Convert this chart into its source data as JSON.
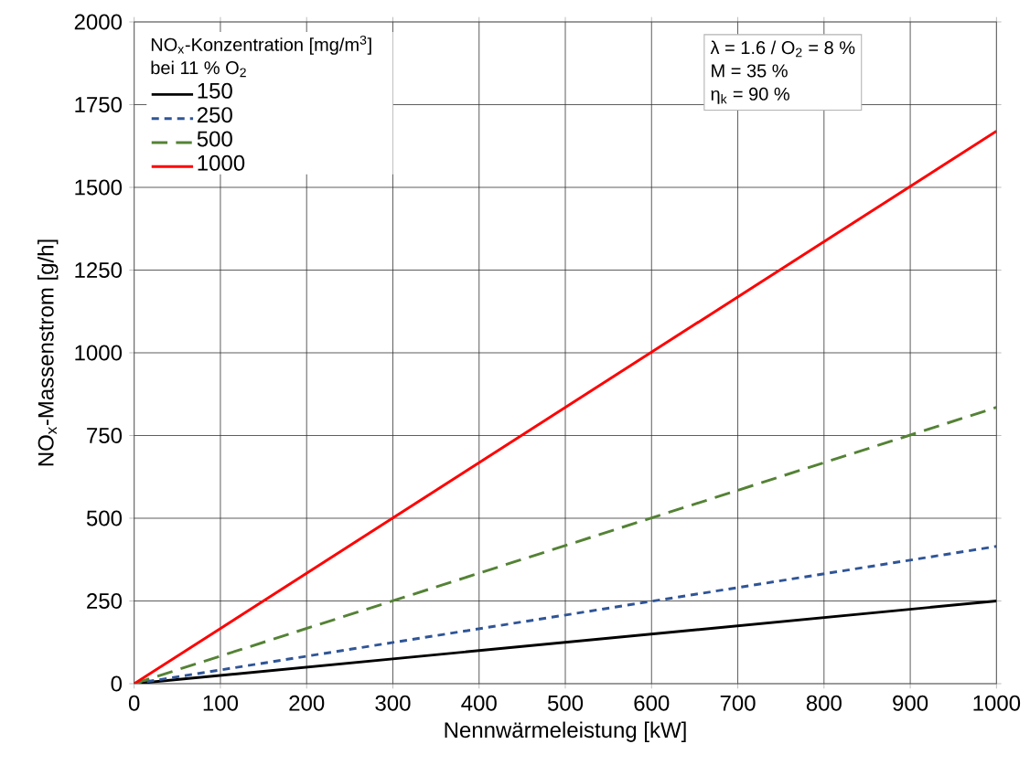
{
  "chart_data": {
    "type": "line",
    "xlabel": "Nennwärmeleistung  [kW]",
    "ylabel": "NO$_{x}$-Massenstrom  [g/h]",
    "legend_title": "NO$_{x}$-Konzentration [mg/m$^{3}$] bei 11 % O$_{2}$",
    "annotations": [
      "λ  = 1.6 / O$_{2}$ = 8 %",
      "M = 35 %",
      "η$_{k}$  = 90 %"
    ],
    "series": [
      {
        "name": "150",
        "color": "#000000",
        "line_style": "solid",
        "values": [
          0,
          250
        ]
      },
      {
        "name": "250",
        "color": "#2f5597",
        "line_style": "dashed",
        "values": [
          0,
          415
        ]
      },
      {
        "name": "500",
        "color": "#548235",
        "line_style": "dashed",
        "values": [
          0,
          835
        ]
      },
      {
        "name": "1000",
        "color": "#ff0000",
        "line_style": "solid",
        "values": [
          0,
          1670
        ]
      }
    ],
    "x": [
      0,
      1000
    ],
    "xlim": [
      0,
      1000
    ],
    "xticks": [
      0,
      100,
      200,
      300,
      400,
      500,
      600,
      700,
      800,
      900,
      1000
    ],
    "ylim": [
      0,
      2000
    ],
    "yticks": [
      0,
      250,
      500,
      750,
      1000,
      1250,
      1500,
      1750,
      2000
    ],
    "grid": true,
    "legend": "top left",
    "marker": "none"
  }
}
